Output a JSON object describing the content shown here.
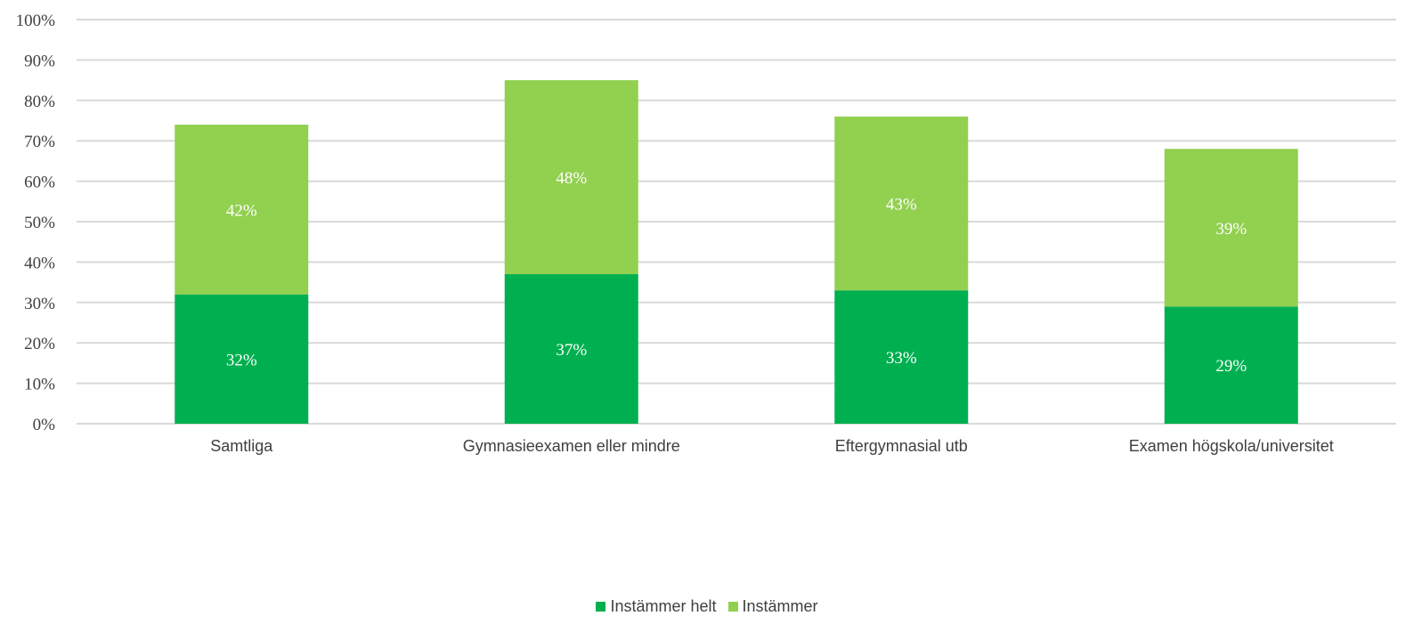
{
  "chart_data": {
    "type": "bar",
    "stacked": true,
    "categories": [
      "Samtliga",
      "Gymnasieexamen eller mindre",
      "Eftergymnasial utb",
      "Examen högskola/universitet"
    ],
    "series": [
      {
        "name": "Instämmer helt",
        "values": [
          32,
          37,
          33,
          29
        ],
        "labels": [
          "32%",
          "37%",
          "33%",
          "29%"
        ],
        "color": "#00b050"
      },
      {
        "name": "Instämmer",
        "values": [
          42,
          48,
          43,
          39
        ],
        "labels": [
          "42%",
          "48%",
          "43%",
          "39%"
        ],
        "color": "#92d050"
      }
    ],
    "ylim": [
      0,
      100
    ],
    "yticks": [
      0,
      10,
      20,
      30,
      40,
      50,
      60,
      70,
      80,
      90,
      100
    ],
    "ytick_labels": [
      "0%",
      "10%",
      "20%",
      "30%",
      "40%",
      "50%",
      "60%",
      "70%",
      "80%",
      "90%",
      "100%"
    ],
    "grid": true,
    "legend_position": "bottom",
    "gridline_color": "#d9d9d9",
    "label_color": "#404040"
  }
}
